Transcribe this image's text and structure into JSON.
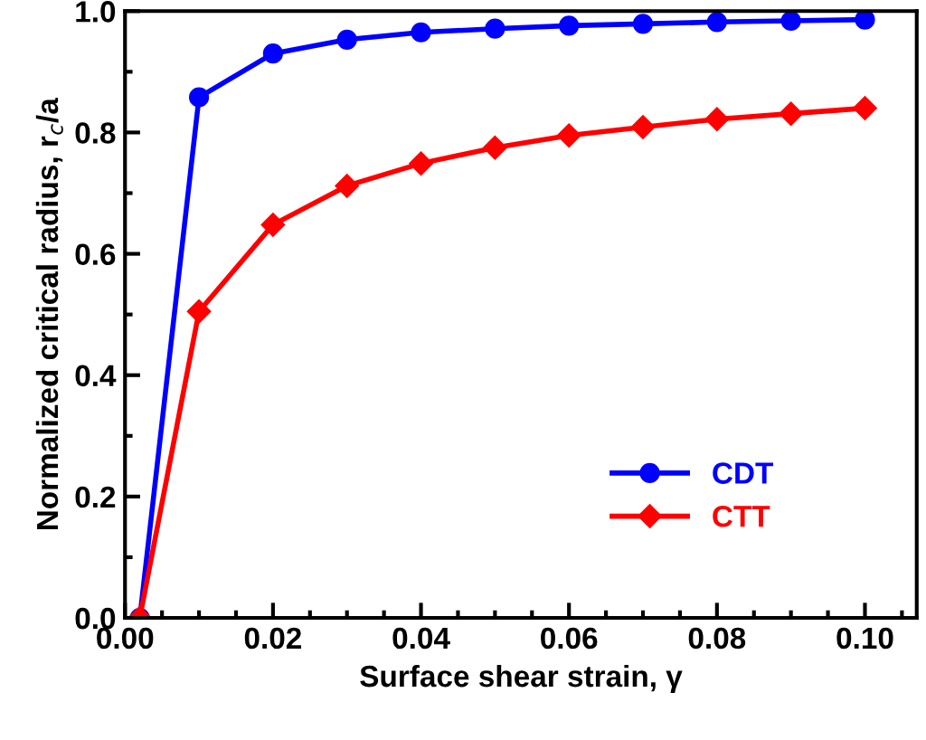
{
  "chart_data": {
    "type": "line",
    "xlabel": "Surface shear strain, γ",
    "ylabel": "Normalized critical radius, r$_{c}$/a",
    "x": [
      0.002,
      0.01,
      0.02,
      0.03,
      0.04,
      0.05,
      0.06,
      0.07,
      0.08,
      0.09,
      0.1
    ],
    "series": [
      {
        "name": "CDT",
        "color": "#0000ff",
        "marker": "circle",
        "values": [
          0,
          0.858,
          0.93,
          0.953,
          0.965,
          0.971,
          0.976,
          0.979,
          0.982,
          0.984,
          0.986
        ]
      },
      {
        "name": "CTT",
        "color": "#ff0000",
        "marker": "diamond",
        "values": [
          0,
          0.505,
          0.648,
          0.712,
          0.749,
          0.775,
          0.795,
          0.809,
          0.822,
          0.831,
          0.84
        ]
      }
    ],
    "xlim": [
      0,
      0.107
    ],
    "ylim": [
      0,
      1
    ],
    "xticks": [
      {
        "value": 0,
        "label": "0.00"
      },
      {
        "value": 0.02,
        "label": "0.02"
      },
      {
        "value": 0.04,
        "label": "0.04"
      },
      {
        "value": 0.06,
        "label": "0.06"
      },
      {
        "value": 0.08,
        "label": "0.08"
      },
      {
        "value": 0.1,
        "label": "0.10"
      }
    ],
    "yticks": [
      {
        "value": 0,
        "label": "0.0"
      },
      {
        "value": 0.2,
        "label": "0.2"
      },
      {
        "value": 0.4,
        "label": "0.4"
      },
      {
        "value": 0.6,
        "label": "0.6"
      },
      {
        "value": 0.8,
        "label": "0.8"
      },
      {
        "value": 1,
        "label": "1.0"
      }
    ],
    "grid": false,
    "legend": "bottom right",
    "line_style": "solid"
  }
}
